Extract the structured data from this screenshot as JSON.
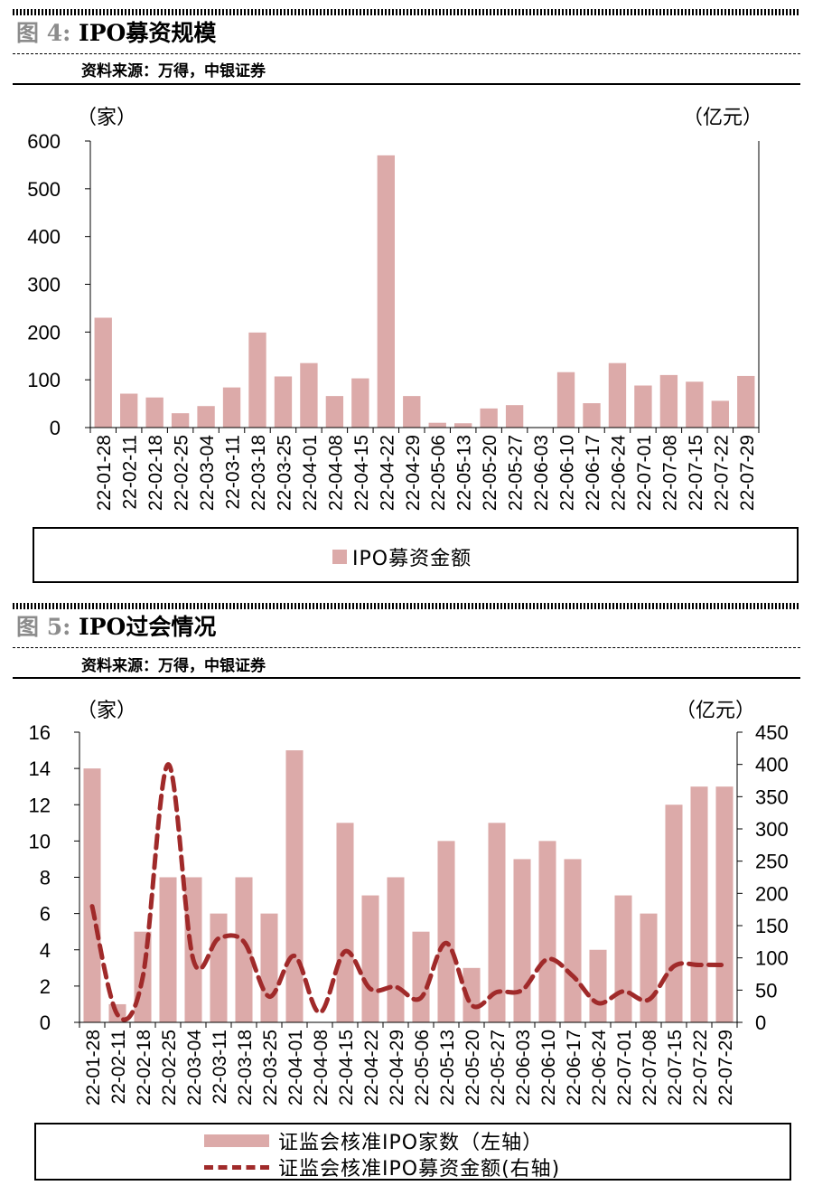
{
  "figure4": {
    "fig_label": "图 4:",
    "title": "IPO募资规模",
    "source": "资料来源：万得，中银证券",
    "left_unit": "（家）",
    "right_unit": "（亿元）",
    "legend": "IPO募资金额"
  },
  "figure5": {
    "fig_label": "图 5:",
    "title": "IPO过会情况",
    "source": "资料来源：万得，中银证券",
    "left_unit": "（家）",
    "right_unit": "（亿元）",
    "legend_bar": "证监会核准IPO家数（左轴）",
    "legend_line": "证监会核准IPO募资金额(右轴)"
  },
  "colors": {
    "bar": "#dcaaa9",
    "line": "#a02a2a"
  },
  "chart_data": [
    {
      "type": "bar",
      "title": "IPO募资规模",
      "categories": [
        "22-01-28",
        "22-02-11",
        "22-02-18",
        "22-02-25",
        "22-03-04",
        "22-03-11",
        "22-03-18",
        "22-03-25",
        "22-04-01",
        "22-04-08",
        "22-04-15",
        "22-04-22",
        "22-04-29",
        "22-05-06",
        "22-05-13",
        "22-05-20",
        "22-05-27",
        "22-06-03",
        "22-06-10",
        "22-06-17",
        "22-06-24",
        "22-07-01",
        "22-07-08",
        "22-07-15",
        "22-07-22",
        "22-07-29"
      ],
      "series": [
        {
          "name": "IPO募资金额",
          "values": [
            230,
            71,
            63,
            30,
            45,
            84,
            199,
            107,
            135,
            66,
            103,
            570,
            66,
            10,
            9,
            40,
            47,
            0,
            116,
            51,
            135,
            88,
            110,
            96,
            56,
            108
          ]
        }
      ],
      "ylim": [
        0,
        600
      ],
      "yticks": [
        0,
        100,
        200,
        300,
        400,
        500,
        600
      ],
      "ylabel": "（家）",
      "ylabel_right": "（亿元）",
      "grid": false,
      "legend": "bottom"
    },
    {
      "type": "bar",
      "title": "IPO过会情况",
      "categories": [
        "22-01-28",
        "22-02-11",
        "22-02-18",
        "22-02-25",
        "22-03-04",
        "22-03-11",
        "22-03-18",
        "22-03-25",
        "22-04-01",
        "22-04-08",
        "22-04-15",
        "22-04-22",
        "22-04-29",
        "22-05-06",
        "22-05-13",
        "22-05-20",
        "22-05-27",
        "22-06-03",
        "22-06-10",
        "22-06-17",
        "22-06-24",
        "22-07-01",
        "22-07-08",
        "22-07-15",
        "22-07-22",
        "22-07-29"
      ],
      "series": [
        {
          "name": "证监会核准IPO家数（左轴）",
          "type": "bar",
          "axis": "left",
          "values": [
            14,
            1,
            5,
            8,
            8,
            6,
            8,
            6,
            15,
            0,
            11,
            7,
            8,
            5,
            10,
            3,
            11,
            9,
            10,
            9,
            4,
            7,
            6,
            12,
            13,
            13
          ]
        },
        {
          "name": "证监会核准IPO募资金额(右轴)",
          "type": "line",
          "style": "dashed",
          "axis": "right",
          "values": [
            180,
            12,
            70,
            400,
            97,
            130,
            125,
            40,
            103,
            15,
            110,
            52,
            55,
            38,
            123,
            27,
            47,
            50,
            98,
            72,
            30,
            48,
            35,
            87,
            89,
            89
          ]
        }
      ],
      "ylim": [
        0,
        16
      ],
      "yticks": [
        0,
        2,
        4,
        6,
        8,
        10,
        12,
        14,
        16
      ],
      "ylim_right": [
        0,
        450
      ],
      "yticks_right": [
        0,
        50,
        100,
        150,
        200,
        250,
        300,
        350,
        400,
        450
      ],
      "ylabel": "（家）",
      "ylabel_right": "（亿元）",
      "grid": false,
      "legend": "bottom"
    }
  ]
}
